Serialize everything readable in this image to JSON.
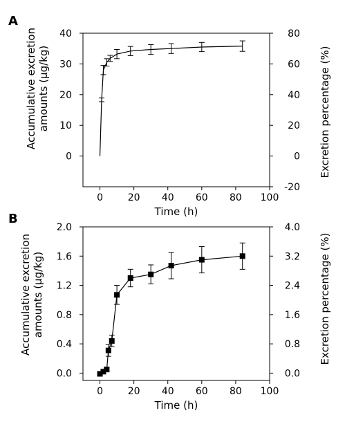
{
  "chart_data": [
    {
      "panel": "A",
      "type": "line",
      "xlabel": "Time (h)",
      "ylabel": [
        "Accumulative excretion",
        "amounts (μg/kg)"
      ],
      "y2label": "Excretion percentage (%)",
      "xlim": [
        -10,
        100
      ],
      "ylim": [
        -10,
        40
      ],
      "y2lim": [
        -20,
        80
      ],
      "xticks": [
        0,
        20,
        40,
        60,
        80,
        100
      ],
      "yticks": [
        0,
        10,
        20,
        30,
        40
      ],
      "y2ticks": [
        -20,
        0,
        20,
        40,
        60,
        80
      ],
      "marker": "none",
      "x": [
        0,
        1,
        2,
        4,
        6,
        10,
        18,
        30,
        42,
        60,
        84
      ],
      "y": [
        0,
        18.3,
        28.0,
        30.5,
        31.8,
        33.2,
        34.2,
        34.7,
        35.0,
        35.5,
        35.8
      ],
      "err": [
        0,
        0.6,
        1.5,
        1.2,
        1.0,
        1.5,
        1.5,
        1.6,
        1.6,
        1.5,
        1.7
      ]
    },
    {
      "panel": "B",
      "type": "line",
      "xlabel": "Time (h)",
      "ylabel": [
        "Accumulative excretion",
        "amounts (μg/kg)"
      ],
      "y2label": "Excretion percentage (%)",
      "xlim": [
        -10,
        100
      ],
      "ylim": [
        -0.1,
        2.0
      ],
      "y2lim": [
        -0.2,
        4.0
      ],
      "xticks": [
        0,
        20,
        40,
        60,
        80,
        100
      ],
      "yticks": [
        "0.0",
        "0.4",
        "0.8",
        "1.2",
        "1.6",
        "2.0"
      ],
      "y2ticks": [
        "0.0",
        "0.8",
        "1.6",
        "2.4",
        "3.2",
        "4.0"
      ],
      "marker": "square",
      "x": [
        0,
        2,
        4,
        5,
        7,
        10,
        18,
        30,
        42,
        60,
        84
      ],
      "y": [
        -0.01,
        0.02,
        0.05,
        0.31,
        0.44,
        1.07,
        1.3,
        1.35,
        1.47,
        1.55,
        1.6
      ],
      "err": [
        0.02,
        0.02,
        0.03,
        0.08,
        0.08,
        0.13,
        0.12,
        0.13,
        0.18,
        0.18,
        0.18
      ]
    }
  ]
}
